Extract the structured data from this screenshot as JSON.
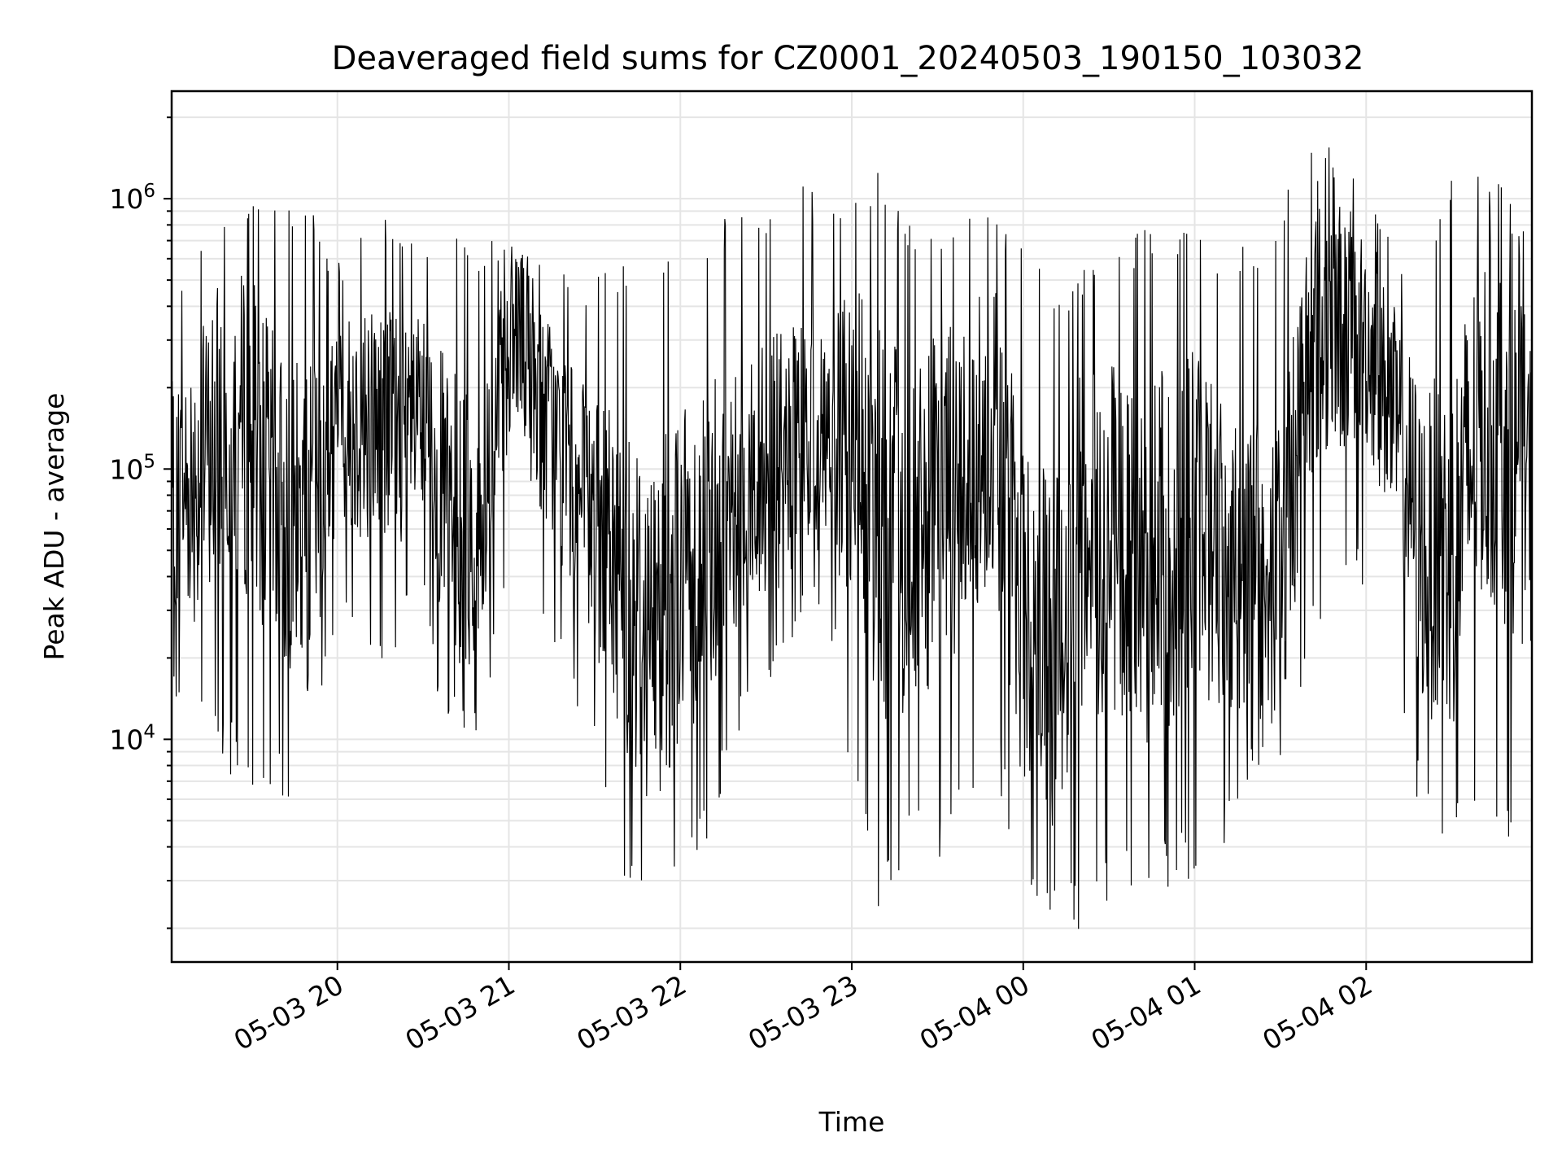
{
  "chart_data": {
    "type": "line",
    "title": "Deaveraged field sums for CZ0001_20240503_190150_103032",
    "xlabel": "Time",
    "ylabel": "Peak ADU - average",
    "yscale": "log",
    "ylim": [
      1500,
      2500000
    ],
    "xlim": [
      "2024-05-03 19:02",
      "2024-05-04 02:58"
    ],
    "grid": true,
    "line_color": "#000000",
    "x_ticks": [
      {
        "t": "2024-05-03 20:00",
        "label": "05-03 20"
      },
      {
        "t": "2024-05-03 21:00",
        "label": "05-03 21"
      },
      {
        "t": "2024-05-03 22:00",
        "label": "05-03 22"
      },
      {
        "t": "2024-05-03 23:00",
        "label": "05-03 23"
      },
      {
        "t": "2024-05-04 00:00",
        "label": "05-04 00"
      },
      {
        "t": "2024-05-04 01:00",
        "label": "05-04 01"
      },
      {
        "t": "2024-05-04 02:00",
        "label": "05-04 02"
      }
    ],
    "y_ticks": [
      {
        "value": 10000,
        "base": "10",
        "exp": "4"
      },
      {
        "value": 100000,
        "base": "10",
        "exp": "5"
      },
      {
        "value": 1000000,
        "base": "10",
        "exp": "6"
      }
    ],
    "series": [
      {
        "x": [
          "2024-05-03 19:02",
          "2024-05-03 19:10",
          "2024-05-03 19:20",
          "2024-05-03 19:30",
          "2024-05-03 19:40",
          "2024-05-03 19:50",
          "2024-05-03 20:00",
          "2024-05-03 20:10",
          "2024-05-03 20:20",
          "2024-05-03 20:30",
          "2024-05-03 20:40",
          "2024-05-03 20:50",
          "2024-05-03 21:00",
          "2024-05-03 21:10",
          "2024-05-03 21:20",
          "2024-05-03 21:30",
          "2024-05-03 21:40",
          "2024-05-03 21:50",
          "2024-05-03 22:00",
          "2024-05-03 22:10",
          "2024-05-03 22:20",
          "2024-05-03 22:30",
          "2024-05-03 22:40",
          "2024-05-03 22:50",
          "2024-05-03 23:00",
          "2024-05-03 23:10",
          "2024-05-03 23:20",
          "2024-05-03 23:30",
          "2024-05-03 23:40",
          "2024-05-03 23:50",
          "2024-05-04 00:00",
          "2024-05-04 00:10",
          "2024-05-04 00:20",
          "2024-05-04 00:30",
          "2024-05-04 00:40",
          "2024-05-04 00:50",
          "2024-05-04 01:00",
          "2024-05-04 01:10",
          "2024-05-04 01:20",
          "2024-05-04 01:30",
          "2024-05-04 01:40",
          "2024-05-04 01:50",
          "2024-05-04 02:00",
          "2024-05-04 02:10",
          "2024-05-04 02:20",
          "2024-05-04 02:30",
          "2024-05-04 02:40",
          "2024-05-04 02:50",
          "2024-05-04 02:58"
        ],
        "values": [
          80000,
          90000,
          150000,
          130000,
          70000,
          60000,
          150000,
          150000,
          150000,
          140000,
          70000,
          50000,
          300000,
          200000,
          100000,
          60000,
          40000,
          25000,
          40000,
          60000,
          80000,
          100000,
          110000,
          130000,
          120000,
          70000,
          50000,
          70000,
          100000,
          150000,
          30000,
          20000,
          50000,
          60000,
          40000,
          50000,
          70000,
          50000,
          40000,
          40000,
          300000,
          350000,
          300000,
          150000,
          50000,
          50000,
          150000,
          120000,
          80000
        ],
        "max": [
          400000,
          700000,
          900000,
          1000000,
          900000,
          950000,
          600000,
          900000,
          950000,
          700000,
          850000,
          700000,
          800000,
          650000,
          550000,
          500000,
          650000,
          700000,
          550000,
          800000,
          950000,
          1000000,
          1150000,
          1100000,
          1000000,
          1300000,
          900000,
          800000,
          850000,
          1050000,
          650000,
          500000,
          550000,
          600000,
          750000,
          900000,
          800000,
          650000,
          700000,
          1000000,
          1500000,
          1700000,
          1000000,
          700000,
          600000,
          1400000,
          1500000,
          1000000,
          700000
        ],
        "min": [
          11000,
          9000,
          8000,
          6000,
          6000,
          5500,
          30000,
          18000,
          20000,
          25000,
          9000,
          10000,
          40000,
          20000,
          15000,
          10000,
          3000,
          2500,
          3000,
          4000,
          10000,
          15000,
          20000,
          30000,
          7000,
          2000,
          4000,
          3000,
          5000,
          8000,
          2500,
          2200,
          1800,
          2500,
          3000,
          2800,
          3000,
          4000,
          6000,
          8000,
          20000,
          30000,
          35000,
          20000,
          4000,
          4000,
          6000,
          3500,
          5000
        ]
      }
    ]
  }
}
